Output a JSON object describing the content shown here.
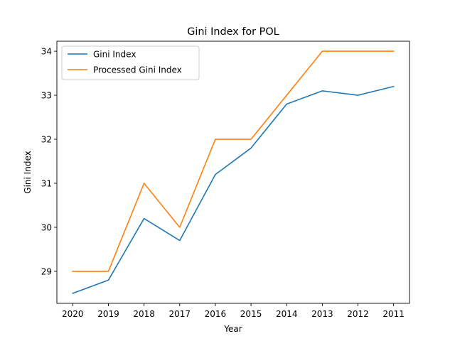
{
  "chart_data": {
    "type": "line",
    "title": "Gini Index for POL",
    "xlabel": "Year",
    "ylabel": "Gini Index",
    "categories": [
      "2020",
      "2019",
      "2018",
      "2017",
      "2016",
      "2015",
      "2014",
      "2013",
      "2012",
      "2011"
    ],
    "series": [
      {
        "name": "Gini Index",
        "color": "#1f77b4",
        "values": [
          28.5,
          28.8,
          30.2,
          29.7,
          31.2,
          31.8,
          32.8,
          33.1,
          33.0,
          33.2
        ]
      },
      {
        "name": "Processed Gini Index",
        "color": "#ff7f0e",
        "values": [
          29,
          29,
          31,
          30,
          32,
          32,
          33,
          34,
          34,
          34
        ]
      }
    ],
    "yticks": [
      "29",
      "30",
      "31",
      "32",
      "33",
      "34"
    ],
    "ylim": [
      28.2725,
      34.2275
    ],
    "grid": false,
    "legend_position": "top-left"
  }
}
